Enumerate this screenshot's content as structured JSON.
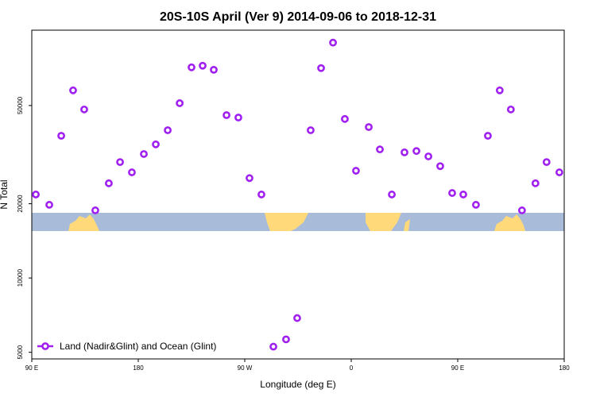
{
  "chart_data": {
    "type": "scatter",
    "title": "20S-10S April (Ver 9)   2014-09-06 to 2018-12-31",
    "x_label": "Longitude (deg E)",
    "y_label": "N Total",
    "xlim": [
      90,
      540
    ],
    "xticks": [
      {
        "value": 90,
        "label": "90 E"
      },
      180,
      {
        "value": 270,
        "label": "90 W"
      },
      {
        "value": 360,
        "label": "0"
      },
      {
        "value": 450,
        "label": "90 E"
      },
      {
        "value": 540,
        "label": "180"
      }
    ],
    "ylim": [
      4700,
      101000
    ],
    "ylog": true,
    "yticks": [
      5000,
      10000,
      20000,
      50000
    ],
    "legend": "lower left",
    "series": [
      {
        "name": "Land (Nadir&Glint) and Ocean (Glint)",
        "color": "#a020f0",
        "x": [
          93.4,
          104.8,
          114.9,
          124.9,
          134.3,
          143.7,
          155.1,
          164.6,
          174.6,
          184.7,
          194.8,
          204.9,
          215.0,
          225.0,
          234.4,
          243.8,
          254.6,
          264.6,
          274.0,
          284.1,
          294.2,
          304.9,
          314.3,
          325.7,
          334.5,
          344.6,
          354.6,
          364.0,
          374.8,
          384.2,
          394.3,
          405.0,
          415.1,
          425.2,
          435.2,
          445.3,
          454.7,
          465.4,
          475.5,
          485.5,
          494.9,
          504.3,
          515.7,
          525.1,
          535.9
        ],
        "values": [
          21800,
          19800,
          37700,
          57600,
          48200,
          18800,
          24200,
          29500,
          26800,
          31800,
          34800,
          39700,
          51100,
          71400,
          72500,
          69800,
          45700,
          44700,
          25400,
          21800,
          5270,
          5640,
          6880,
          39700,
          70900,
          89900,
          44100,
          27200,
          40900,
          33200,
          21800,
          32300,
          32700,
          31100,
          28400,
          22100,
          21800,
          19800,
          37700,
          57600,
          48200,
          18800,
          24200,
          29500,
          26800
        ]
      }
    ]
  }
}
